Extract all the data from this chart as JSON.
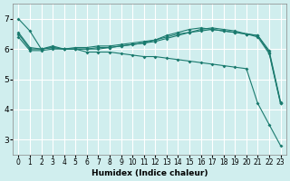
{
  "background_color": "#d0eeee",
  "grid_color": "#ffffff",
  "line_color": "#1a7a6e",
  "xlabel": "Humidex (Indice chaleur)",
  "ylabel": "",
  "xlim": [
    -0.5,
    23.5
  ],
  "ylim": [
    2.5,
    7.5
  ],
  "yticks": [
    3,
    4,
    5,
    6,
    7
  ],
  "xtick_labels": [
    "0",
    "1",
    "2",
    "3",
    "4",
    "5",
    "6",
    "7",
    "8",
    "9",
    "10",
    "11",
    "12",
    "13",
    "14",
    "15",
    "16",
    "17",
    "18",
    "19",
    "20",
    "21",
    "22",
    "23"
  ],
  "series": [
    {
      "x": [
        0,
        1,
        2,
        3,
        4,
        5,
        6,
        7,
        8,
        9,
        10,
        11,
        12,
        13,
        14,
        15,
        16,
        17,
        18,
        19,
        20,
        21,
        22,
        23
      ],
      "y": [
        7.0,
        6.6,
        6.0,
        6.1,
        6.0,
        6.0,
        5.9,
        5.9,
        5.9,
        5.85,
        5.8,
        5.75,
        5.75,
        5.7,
        5.65,
        5.6,
        5.55,
        5.5,
        5.45,
        5.4,
        5.35,
        4.2,
        3.5,
        2.8
      ]
    },
    {
      "x": [
        0,
        1,
        2,
        3,
        4,
        5,
        6,
        7,
        8,
        9,
        10,
        11,
        12,
        13,
        14,
        15,
        16,
        17,
        18,
        19,
        20,
        21,
        22,
        23
      ],
      "y": [
        6.55,
        6.05,
        6.0,
        6.05,
        6.0,
        6.05,
        6.05,
        6.1,
        6.1,
        6.15,
        6.2,
        6.25,
        6.3,
        6.45,
        6.55,
        6.65,
        6.7,
        6.65,
        6.6,
        6.55,
        6.5,
        6.45,
        5.9,
        4.2
      ]
    },
    {
      "x": [
        0,
        1,
        2,
        3,
        4,
        5,
        6,
        7,
        8,
        9,
        10,
        11,
        12,
        13,
        14,
        15,
        16,
        17,
        18,
        19,
        20,
        21,
        22,
        23
      ],
      "y": [
        6.5,
        6.0,
        6.0,
        6.05,
        6.0,
        6.0,
        6.0,
        6.0,
        6.05,
        6.1,
        6.15,
        6.2,
        6.3,
        6.4,
        6.5,
        6.55,
        6.65,
        6.7,
        6.65,
        6.6,
        6.5,
        6.45,
        5.95,
        4.25
      ]
    },
    {
      "x": [
        0,
        1,
        2,
        3,
        4,
        5,
        6,
        7,
        8,
        9,
        10,
        11,
        12,
        13,
        14,
        15,
        16,
        17,
        18,
        19,
        20,
        21,
        22,
        23
      ],
      "y": [
        6.4,
        5.95,
        5.95,
        6.0,
        6.0,
        6.0,
        6.0,
        6.05,
        6.05,
        6.1,
        6.15,
        6.2,
        6.25,
        6.35,
        6.45,
        6.55,
        6.6,
        6.65,
        6.6,
        6.55,
        6.5,
        6.4,
        5.85,
        4.2
      ]
    }
  ]
}
